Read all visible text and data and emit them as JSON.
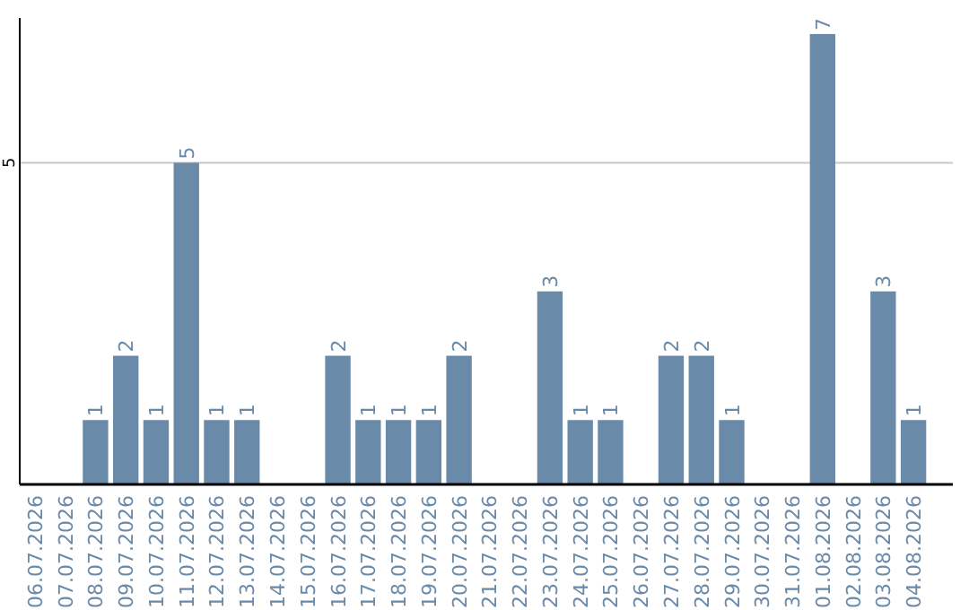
{
  "chart_data": {
    "type": "bar",
    "categories": [
      "06.07.2026",
      "07.07.2026",
      "08.07.2026",
      "09.07.2026",
      "10.07.2026",
      "11.07.2026",
      "12.07.2026",
      "13.07.2026",
      "14.07.2026",
      "15.07.2026",
      "16.07.2026",
      "17.07.2026",
      "18.07.2026",
      "19.07.2026",
      "20.07.2026",
      "21.07.2026",
      "22.07.2026",
      "23.07.2026",
      "24.07.2026",
      "25.07.2026",
      "26.07.2026",
      "27.07.2026",
      "28.07.2026",
      "29.07.2026",
      "30.07.2026",
      "31.07.2026",
      "01.08.2026",
      "02.08.2026",
      "03.08.2026",
      "04.08.2026"
    ],
    "values": [
      0,
      0,
      1,
      2,
      1,
      5,
      1,
      1,
      0,
      0,
      2,
      1,
      1,
      1,
      2,
      0,
      0,
      3,
      1,
      1,
      0,
      2,
      2,
      1,
      0,
      0,
      7,
      0,
      3,
      1
    ],
    "value_labels": [
      null,
      null,
      "1",
      "2",
      "1",
      "5",
      "1",
      "1",
      null,
      null,
      "2",
      "1",
      "1",
      "1",
      "2",
      null,
      null,
      "3",
      "1",
      "1",
      null,
      "2",
      "2",
      "1",
      null,
      null,
      "7",
      null,
      "3",
      "1"
    ],
    "color": "#6a8aaa",
    "ylim": [
      0,
      7.25
    ],
    "yticks": [
      5
    ],
    "grid": "y"
  }
}
